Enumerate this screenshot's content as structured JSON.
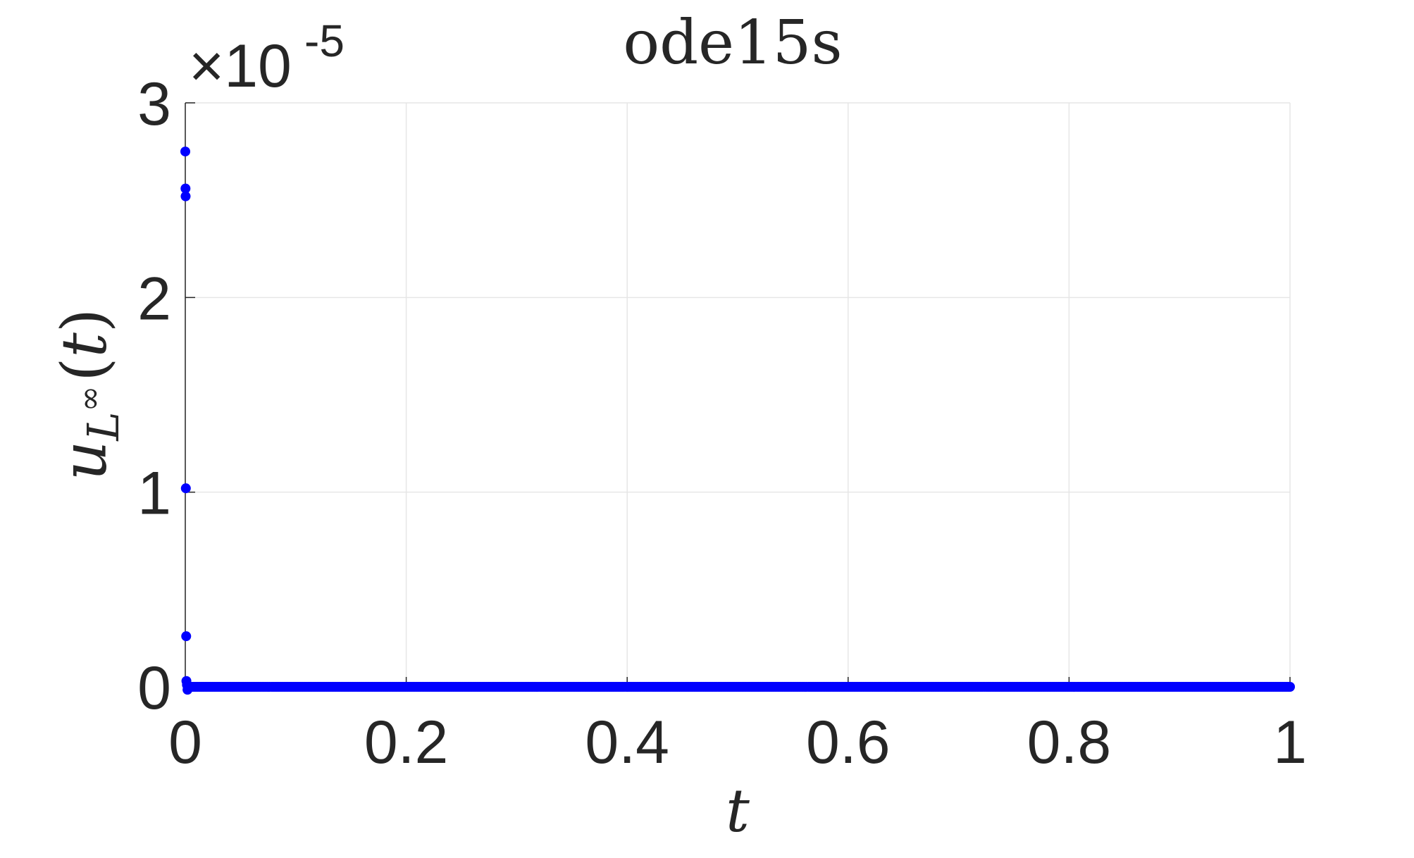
{
  "chart_data": {
    "type": "scatter",
    "title": "ode15s",
    "xlabel": "t",
    "ylabel": {
      "base": "u",
      "subscript_base": "L",
      "subscript_sup": "∞",
      "paren_open": "(",
      "arg": "t",
      "paren_close": ")"
    },
    "xlim": [
      0,
      1
    ],
    "ylim": [
      0,
      3e-05
    ],
    "grid": true,
    "marker_color": "#0000ff",
    "y_exponent": {
      "multiplier": "×10",
      "power": "-5"
    },
    "x_ticks": [
      {
        "value": 0,
        "label": "0"
      },
      {
        "value": 0.2,
        "label": "0.2"
      },
      {
        "value": 0.4,
        "label": "0.4"
      },
      {
        "value": 0.6,
        "label": "0.6"
      },
      {
        "value": 0.8,
        "label": "0.8"
      },
      {
        "value": 1,
        "label": "1"
      }
    ],
    "y_ticks": [
      {
        "value": 0,
        "label": "0"
      },
      {
        "value": 1e-05,
        "label": "1"
      },
      {
        "value": 2e-05,
        "label": "2"
      },
      {
        "value": 3e-05,
        "label": "3"
      }
    ],
    "series": [
      {
        "points": [
          {
            "x": 0.0,
            "y": 2.75e-05
          },
          {
            "x": 0.0002,
            "y": 2.56e-05
          },
          {
            "x": 0.0003,
            "y": 2.52e-05
          },
          {
            "x": 0.0005,
            "y": 1.02e-05
          },
          {
            "x": 0.0008,
            "y": 2.6e-06
          },
          {
            "x": 0.001,
            "y": 3e-07
          },
          {
            "x": 0.0015,
            "y": 1e-07
          },
          {
            "x": 0.002,
            "y": -1.5e-07
          },
          {
            "x": 0.003,
            "y": 0.0
          }
        ],
        "dense_baseline": {
          "x_start": 0.003,
          "x_end": 1.0,
          "y": 0.0,
          "count": 600
        }
      }
    ]
  }
}
